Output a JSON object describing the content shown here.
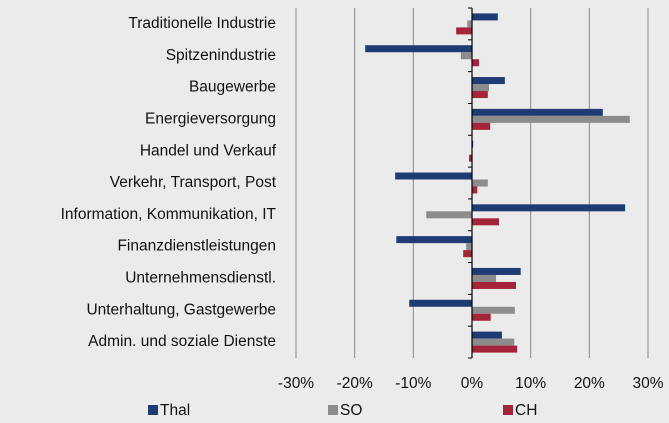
{
  "chart_data": {
    "type": "barh",
    "categories": [
      "Traditionelle Industrie",
      "Spitzenindustrie",
      "Baugewerbe",
      "Energieversorgung",
      "Handel und Verkauf",
      "Verkehr, Transport, Post",
      "Information, Kommunikation, IT",
      "Finanzdienstleistungen",
      "Unternehmensdienstl.",
      "Unterhaltung, Gastgewerbe",
      "Admin. und soziale Dienste"
    ],
    "series": [
      {
        "name": "Thal",
        "color": "#1f3b73",
        "values": [
          4.4,
          -18.2,
          5.6,
          22.3,
          0.2,
          -13.1,
          26.1,
          -12.9,
          8.3,
          -10.7,
          5.1
        ]
      },
      {
        "name": "SO",
        "color": "#8c8c8c",
        "values": [
          -0.8,
          -1.9,
          2.9,
          26.9,
          0.0,
          2.7,
          -7.8,
          -1.0,
          4.1,
          7.3,
          7.2
        ]
      },
      {
        "name": "CH",
        "color": "#a3243b",
        "values": [
          -2.7,
          1.2,
          2.7,
          3.1,
          -0.5,
          0.9,
          4.6,
          -1.5,
          7.5,
          3.2,
          7.7
        ]
      }
    ],
    "xlim": [
      -30,
      30
    ],
    "xticks": [
      {
        "value": -30,
        "label": "-30%"
      },
      {
        "value": -20,
        "label": "-20%"
      },
      {
        "value": -10,
        "label": "-10%"
      },
      {
        "value": 0,
        "label": "0%"
      },
      {
        "value": 10,
        "label": "10%"
      },
      {
        "value": 20,
        "label": "20%"
      },
      {
        "value": 30,
        "label": "30%"
      }
    ],
    "grid": true,
    "legend": "bottom"
  }
}
